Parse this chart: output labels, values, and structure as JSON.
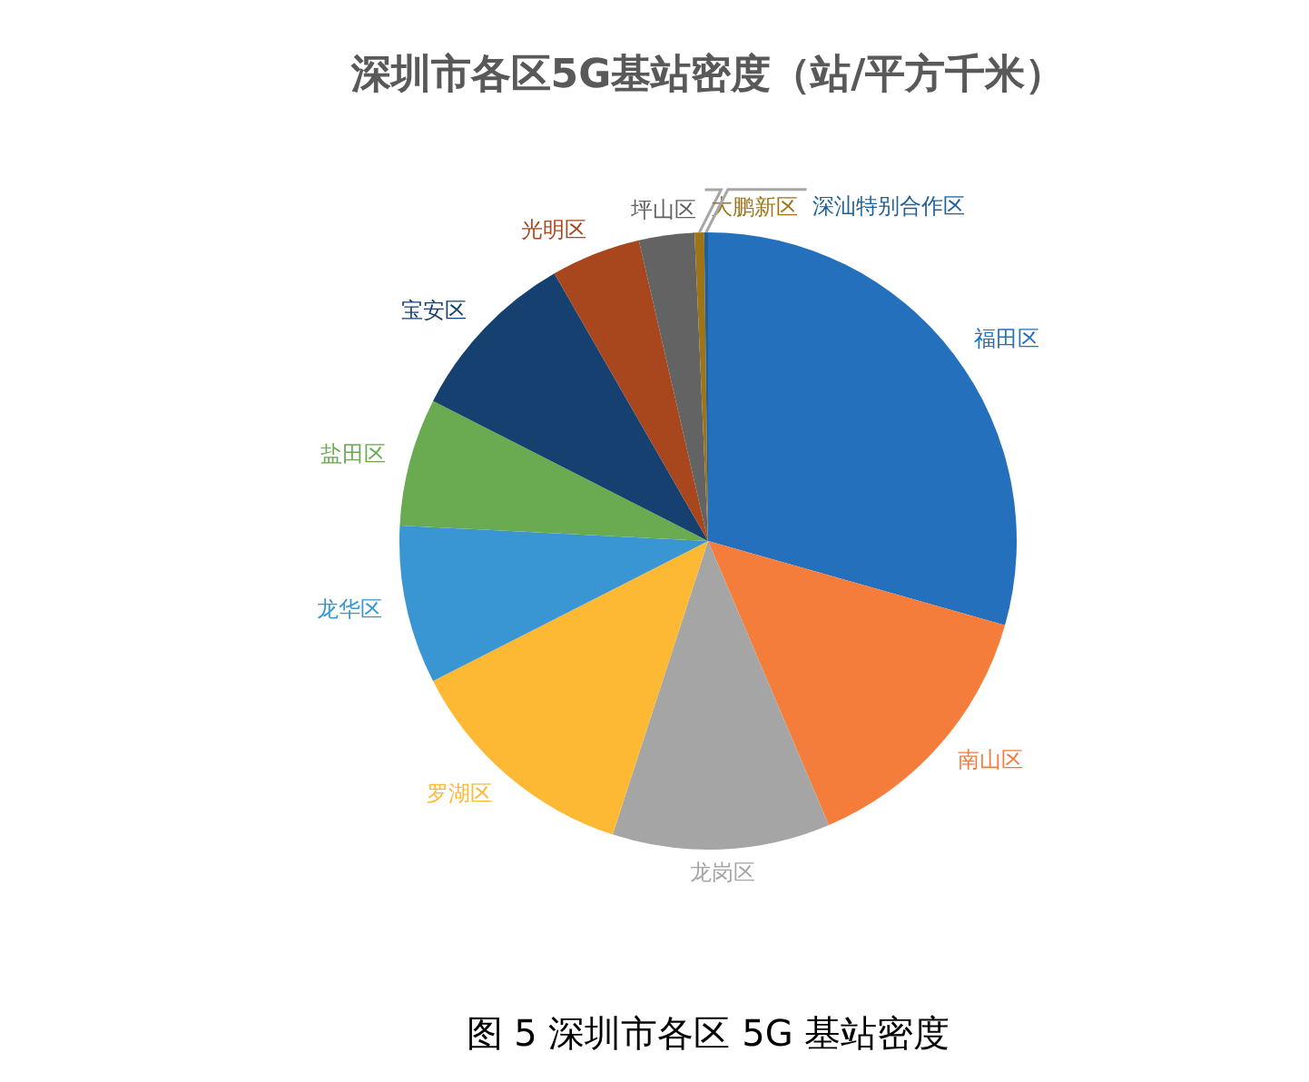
{
  "chart_data": {
    "type": "pie",
    "title": "深圳市各区5G基站密度（站/平方千米）",
    "categories": [
      "福田区",
      "南山区",
      "龙岗区",
      "罗湖区",
      "龙华区",
      "盐田区",
      "宝安区",
      "光明区",
      "坪山区",
      "大鹏新区",
      "深汕特别合作区"
    ],
    "values": [
      29.4,
      14.2,
      11.4,
      12.5,
      8.3,
      6.7,
      9.2,
      4.7,
      2.9,
      0.5,
      0.2
    ],
    "colors": [
      "#2570bc",
      "#f57d3c",
      "#a5a5a5",
      "#fdb934",
      "#3a96d3",
      "#6aaa50",
      "#15406f",
      "#a8461d",
      "#636363",
      "#9d7418",
      "#1f5f98"
    ],
    "annotations": [
      "图 5 深圳市各区 5G 基站密度"
    ]
  }
}
